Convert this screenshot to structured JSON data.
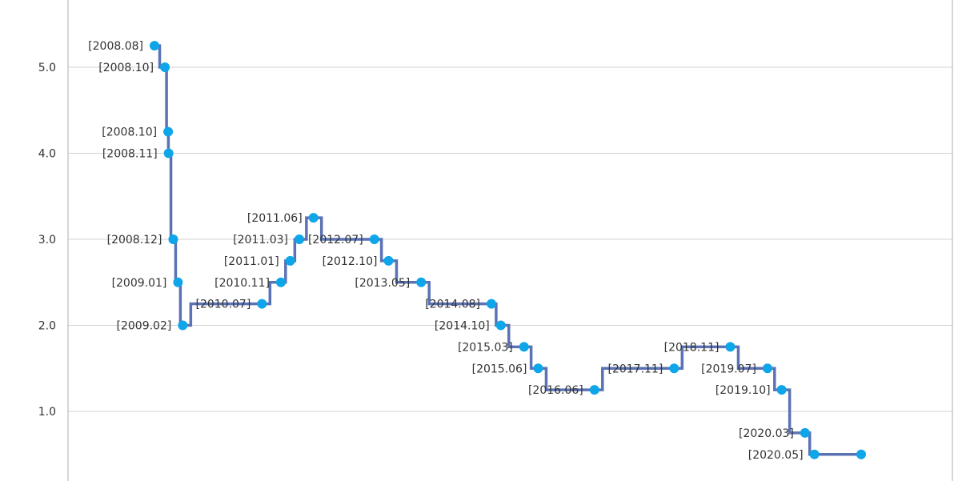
{
  "chart_data": {
    "type": "line",
    "step": "vertical-first",
    "line_color": "#5b73b5",
    "marker_color": "#0ea5e9",
    "ylim": [
      0.0,
      5.8
    ],
    "yticks": [
      {
        "value": 1.0,
        "label": "1.0"
      },
      {
        "value": 2.0,
        "label": "2.0"
      },
      {
        "value": 3.0,
        "label": "3.0"
      },
      {
        "value": 4.0,
        "label": "4.0"
      },
      {
        "value": 5.0,
        "label": "5.0"
      }
    ],
    "grid": true,
    "xlabel": "",
    "ylabel": "",
    "points": [
      {
        "label": "[2008.08]",
        "date": "2008-08",
        "value": 5.25
      },
      {
        "label": "[2008.10]",
        "date": "2008-10-08",
        "value": 5.0
      },
      {
        "label": "[2008.10]",
        "date": "2008-10-29",
        "value": 4.25
      },
      {
        "label": "[2008.11]",
        "date": "2008-11",
        "value": 4.0
      },
      {
        "label": "[2008.12]",
        "date": "2008-12",
        "value": 3.0
      },
      {
        "label": "[2009.01]",
        "date": "2009-01",
        "value": 2.5
      },
      {
        "label": "[2009.02]",
        "date": "2009-02",
        "value": 2.0
      },
      {
        "label": "[2010.07]",
        "date": "2010-07",
        "value": 2.25
      },
      {
        "label": "[2010.11]",
        "date": "2010-11",
        "value": 2.5
      },
      {
        "label": "[2011.01]",
        "date": "2011-01",
        "value": 2.75
      },
      {
        "label": "[2011.03]",
        "date": "2011-03",
        "value": 3.0
      },
      {
        "label": "[2011.06]",
        "date": "2011-06",
        "value": 3.25
      },
      {
        "label": "[2012.07]",
        "date": "2012-07",
        "value": 3.0
      },
      {
        "label": "[2012.10]",
        "date": "2012-10",
        "value": 2.75
      },
      {
        "label": "[2013.05]",
        "date": "2013-05",
        "value": 2.5
      },
      {
        "label": "[2014.08]",
        "date": "2014-08",
        "value": 2.25
      },
      {
        "label": "[2014.10]",
        "date": "2014-10",
        "value": 2.0
      },
      {
        "label": "[2015.03]",
        "date": "2015-03",
        "value": 1.75
      },
      {
        "label": "[2015.06]",
        "date": "2015-06",
        "value": 1.5
      },
      {
        "label": "[2016.06]",
        "date": "2016-06",
        "value": 1.25
      },
      {
        "label": "[2017.11]",
        "date": "2017-11",
        "value": 1.5
      },
      {
        "label": "[2018.11]",
        "date": "2018-11",
        "value": 1.75
      },
      {
        "label": "[2019.07]",
        "date": "2019-07",
        "value": 1.5
      },
      {
        "label": "[2019.10]",
        "date": "2019-10",
        "value": 1.25
      },
      {
        "label": "[2020.03]",
        "date": "2020-03",
        "value": 0.75
      },
      {
        "label": "[2020.05]",
        "date": "2020-05",
        "value": 0.5
      },
      {
        "label": "",
        "date": "2021-03",
        "value": 0.5
      }
    ]
  }
}
